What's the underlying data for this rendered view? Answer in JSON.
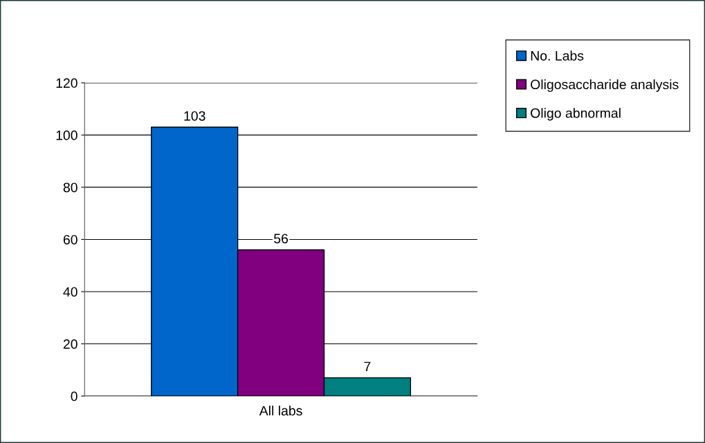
{
  "chart_data": {
    "type": "bar",
    "categories": [
      "All labs"
    ],
    "series": [
      {
        "name": "No. Labs",
        "color": "#0066cc",
        "values": [
          103
        ]
      },
      {
        "name": "Oligosaccharide analysis",
        "color": "#800080",
        "values": [
          56
        ]
      },
      {
        "name": "Oligo abnormal",
        "color": "#008080",
        "values": [
          7
        ]
      }
    ],
    "ylim": [
      0,
      120
    ],
    "yticks": [
      0,
      20,
      40,
      60,
      80,
      100,
      120
    ],
    "grid": "y",
    "legend": "right",
    "data_labels": true
  }
}
